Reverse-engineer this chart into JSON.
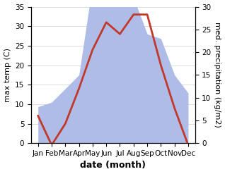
{
  "months": [
    "Jan",
    "Feb",
    "Mar",
    "Apr",
    "May",
    "Jun",
    "Jul",
    "Aug",
    "Sep",
    "Oct",
    "Nov",
    "Dec"
  ],
  "temperature": [
    7,
    -0.5,
    5,
    14,
    24,
    31,
    28,
    33,
    33,
    20,
    9,
    -0.5
  ],
  "precipitation_mm": [
    8,
    9,
    12,
    15,
    35,
    38,
    31,
    32,
    24,
    23,
    15,
    11
  ],
  "temp_color": "#c0392b",
  "precip_color": "#b0bce8",
  "background_color": "#ffffff",
  "xlabel": "date (month)",
  "ylabel_left": "max temp (C)",
  "ylabel_right": "med. precipitation (kg/m2)",
  "temp_ylim": [
    0,
    35
  ],
  "precip_ylim": [
    0,
    30
  ],
  "temp_yticks": [
    0,
    5,
    10,
    15,
    20,
    25,
    30,
    35
  ],
  "precip_yticks": [
    0,
    5,
    10,
    15,
    20,
    25,
    30
  ],
  "xlabel_fontsize": 9,
  "ylabel_fontsize": 8,
  "tick_fontsize": 7.5,
  "line_width": 2.0
}
